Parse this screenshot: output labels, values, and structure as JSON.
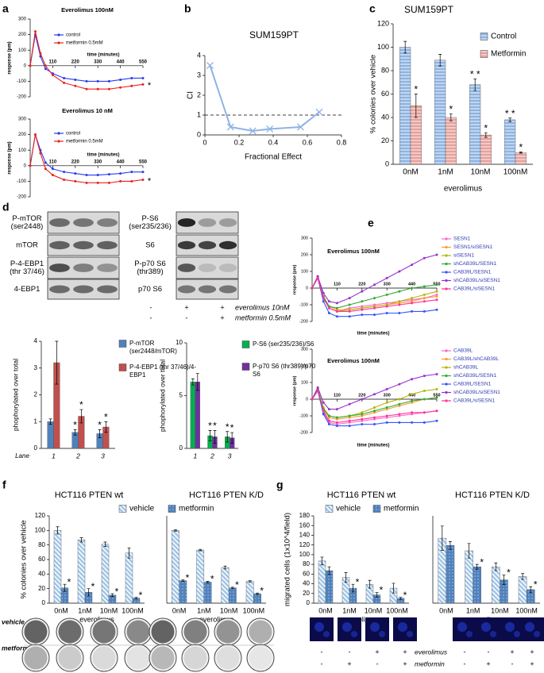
{
  "figure": {
    "panel_labels": [
      "a",
      "b",
      "c",
      "d",
      "e",
      "f",
      "g"
    ],
    "blots": [
      {
        "labels": [
          [
            "P-mTOR",
            "(ser2448)"
          ],
          [
            "mTOR"
          ],
          [
            "P-4-EBP1",
            "(thr 37/46)"
          ],
          [
            "4-EBP1"
          ]
        ]
      },
      {
        "labels": [
          [
            "P-S6",
            "(ser235/236)"
          ],
          [
            "S6"
          ],
          [
            "P-p70 S6",
            "(thr389)"
          ],
          [
            "p70 S6"
          ]
        ]
      }
    ],
    "treatments": [
      {
        "label": "everolimus 10nM",
        "signs": [
          "-",
          "+",
          "+"
        ]
      },
      {
        "label": "metformin 0.5mM",
        "signs": [
          "-",
          "-",
          "+"
        ]
      }
    ],
    "plate_rows": [
      "vehicle",
      "metformin"
    ],
    "migration_treatments": [
      {
        "label": "everolimus",
        "signs": [
          "-",
          "-",
          "+",
          "+",
          "-",
          "-",
          "+",
          "+"
        ]
      },
      {
        "label": "metformin",
        "signs": [
          "-",
          "+",
          "-",
          "+",
          "-",
          "+",
          "-",
          "+"
        ]
      }
    ]
  },
  "chart_data": [
    {
      "type": "line",
      "title": "Everolimus 100nM",
      "x_label": "time (minutes)",
      "y_label": "response (pm)",
      "x": [
        0,
        25,
        50,
        75,
        110,
        165,
        220,
        275,
        330,
        385,
        440,
        495,
        550
      ],
      "xlim": [
        0,
        550
      ],
      "xticks": [
        110,
        220,
        330,
        440,
        550
      ],
      "ylim": [
        -200,
        300
      ],
      "yticks": [
        -200,
        -100,
        0,
        100,
        200,
        300
      ],
      "x_axis_at_zero": true,
      "marker": "circle",
      "annotation": "*",
      "series": [
        {
          "name": "control",
          "color": "#2a3cf0",
          "values": [
            0,
            200,
            60,
            -20,
            -50,
            -80,
            -90,
            -100,
            -100,
            -100,
            -90,
            -80,
            -80
          ]
        },
        {
          "name": "metformin 0.5mM",
          "color": "#e8231e",
          "values": [
            0,
            220,
            80,
            0,
            -60,
            -110,
            -130,
            -150,
            -150,
            -150,
            -140,
            -130,
            -120
          ]
        }
      ]
    },
    {
      "type": "line",
      "title": "Everolimus 10 nM",
      "x_label": "time (minutes)",
      "y_label": "response (pm)",
      "x": [
        0,
        25,
        50,
        75,
        110,
        165,
        220,
        275,
        330,
        385,
        440,
        495,
        550
      ],
      "xlim": [
        0,
        550
      ],
      "xticks": [
        110,
        220,
        330,
        440,
        550
      ],
      "ylim": [
        -200,
        300
      ],
      "yticks": [
        -200,
        -100,
        0,
        100,
        200,
        300
      ],
      "x_axis_at_zero": true,
      "marker": "circle",
      "annotation": "*",
      "series": [
        {
          "name": "control",
          "color": "#2a3cf0",
          "values": [
            0,
            200,
            100,
            20,
            -20,
            -40,
            -50,
            -60,
            -60,
            -55,
            -50,
            -40,
            -40
          ]
        },
        {
          "name": "metformin 0.5mM",
          "color": "#e8231e",
          "values": [
            0,
            200,
            80,
            -20,
            -60,
            -90,
            -100,
            -110,
            -110,
            -110,
            -100,
            -100,
            -90
          ]
        }
      ]
    },
    {
      "type": "line",
      "title": "SUM159PT",
      "x_label": "Fractional Effect",
      "y_label": "CI",
      "x": [
        0.03,
        0.15,
        0.28,
        0.38,
        0.56,
        0.67
      ],
      "xlim": [
        0,
        0.8
      ],
      "xticks": [
        0,
        0.2,
        0.4,
        0.6,
        0.8
      ],
      "ylim": [
        0,
        4
      ],
      "yticks": [
        0,
        1,
        2,
        3,
        4
      ],
      "hline": 1,
      "marker": "x",
      "series": [
        {
          "color": "#8eb4e3",
          "values": [
            3.5,
            0.4,
            0.2,
            0.3,
            0.4,
            1.15
          ]
        }
      ]
    },
    {
      "type": "bar",
      "title": "SUM159PT",
      "x_label": "everolimus",
      "y_label": "% colonies over vehicle",
      "categories": [
        "0nM",
        "1nM",
        "10nM",
        "100nM"
      ],
      "ylim": [
        0,
        120
      ],
      "yticks": [
        0,
        20,
        40,
        60,
        80,
        100,
        120
      ],
      "series": [
        {
          "name": "Control",
          "color": "#8db3e2",
          "pattern": "horizontal",
          "values": [
            100,
            89,
            68,
            38
          ],
          "errors": [
            5,
            5,
            5,
            1.5
          ],
          "significance": [
            null,
            null,
            "* *",
            "* *"
          ]
        },
        {
          "name": "Metformin",
          "color": "#e6a09a",
          "pattern": "horizontal",
          "values": [
            50,
            40,
            25,
            10
          ],
          "errors": [
            10,
            3,
            2,
            0.5
          ],
          "significance": [
            "*",
            "*",
            "*",
            "*"
          ]
        }
      ]
    },
    {
      "type": "bar",
      "x_label": "Lane",
      "y_label": "phophorylated over total",
      "categories": [
        "1",
        "2",
        "3"
      ],
      "ylim": [
        0,
        4
      ],
      "yticks": [
        0,
        1,
        2,
        3,
        4
      ],
      "series": [
        {
          "name": "P-mTOR (ser2448/mTOR)",
          "color": "#4f81bd",
          "values": [
            1,
            0.6,
            0.55
          ],
          "errors": [
            0.1,
            0.1,
            0.15
          ],
          "significance": [
            null,
            "*",
            "*"
          ]
        },
        {
          "name": "P-4-EBP1 (thr 37/46)/4-EBP1",
          "color": "#c0504d",
          "values": [
            3.2,
            1.2,
            0.8
          ],
          "errors": [
            0.8,
            0.25,
            0.2
          ],
          "significance": [
            null,
            "*",
            "*"
          ]
        }
      ]
    },
    {
      "type": "bar",
      "y_label": "phophorylated over total",
      "categories": [
        "1",
        "2",
        "3"
      ],
      "ylim": [
        0,
        10
      ],
      "yticks": [
        0,
        5,
        10
      ],
      "series": [
        {
          "name": "P-S6 (ser235/236)/S6",
          "color": "#00b050",
          "values": [
            6.3,
            1.2,
            1.1
          ],
          "errors": [
            0.3,
            0.5,
            0.5
          ],
          "significance": [
            null,
            "*",
            "*"
          ]
        },
        {
          "name": "P-p70 S6 (thr389)/p70 S6",
          "color": "#7030a0",
          "values": [
            6.3,
            1.1,
            1.0
          ],
          "errors": [
            0.8,
            0.6,
            0.5
          ],
          "significance": [
            null,
            "*",
            "*"
          ]
        }
      ]
    },
    {
      "type": "line",
      "title": "Everolimus 100nM",
      "x_label": "time (minutes)",
      "y_label": "response (pm)",
      "x": [
        0,
        25,
        50,
        75,
        110,
        165,
        220,
        275,
        330,
        385,
        440,
        495,
        550
      ],
      "xlim": [
        0,
        550
      ],
      "xticks": [
        110,
        220,
        330,
        440,
        550
      ],
      "ylim": [
        -200,
        300
      ],
      "yticks": [
        -200,
        -100,
        0,
        100,
        200,
        300
      ],
      "x_axis_at_zero": true,
      "marker": "circle",
      "legend_text_color": "#2e3bb0",
      "series": [
        {
          "name": "SESN1",
          "color": "#ff66cc",
          "values": [
            0,
            60,
            -60,
            -120,
            -140,
            -120,
            -110,
            -100,
            -90,
            -80,
            -70,
            -60,
            -40
          ]
        },
        {
          "name": "SESN1/siSESN1",
          "color": "#ff9933",
          "values": [
            0,
            70,
            -50,
            -110,
            -130,
            -130,
            -120,
            -110,
            -100,
            -90,
            -80,
            -60,
            -50
          ]
        },
        {
          "name": "siSESN1",
          "color": "#b5b500",
          "values": [
            0,
            60,
            -60,
            -120,
            -140,
            -130,
            -120,
            -110,
            -100,
            -80,
            -60,
            -40,
            -20
          ]
        },
        {
          "name": "shCAB39L/SESN1",
          "color": "#33aa33",
          "values": [
            0,
            70,
            -50,
            -110,
            -120,
            -100,
            -80,
            -60,
            -40,
            -20,
            0,
            10,
            20
          ]
        },
        {
          "name": "CAB39L/SESN1",
          "color": "#3355ff",
          "values": [
            0,
            60,
            -80,
            -150,
            -170,
            -170,
            -160,
            -160,
            -150,
            -150,
            -140,
            -140,
            -130
          ]
        },
        {
          "name": "shCAB39L/siSESN1",
          "color": "#9933cc",
          "values": [
            0,
            70,
            -30,
            -80,
            -90,
            -60,
            -20,
            20,
            60,
            100,
            140,
            180,
            200
          ]
        },
        {
          "name": "CAB39L/siSESN1",
          "color": "#ff3399",
          "values": [
            0,
            60,
            -60,
            -120,
            -140,
            -140,
            -130,
            -120,
            -110,
            -100,
            -90,
            -80,
            -70
          ]
        }
      ]
    },
    {
      "type": "line",
      "title": "Everolimus 100nM",
      "x_label": "time (minutes)",
      "y_label": "response (pm)",
      "x": [
        0,
        25,
        50,
        75,
        110,
        165,
        220,
        275,
        330,
        385,
        440,
        495,
        550
      ],
      "xlim": [
        0,
        550
      ],
      "xticks": [
        110,
        220,
        330,
        440,
        550
      ],
      "ylim": [
        -200,
        300
      ],
      "yticks": [
        -200,
        -100,
        0,
        100,
        200,
        300
      ],
      "x_axis_at_zero": true,
      "marker": "circle",
      "legend_text_color": "#2e3bb0",
      "series": [
        {
          "name": "CAB39L",
          "color": "#ff66cc",
          "values": [
            0,
            50,
            -80,
            -140,
            -150,
            -140,
            -130,
            -120,
            -110,
            -100,
            -90,
            -80,
            -70
          ]
        },
        {
          "name": "CAB39L/shCAB39L",
          "color": "#ff9933",
          "values": [
            0,
            60,
            -60,
            -110,
            -120,
            -110,
            -100,
            -80,
            -60,
            -40,
            -20,
            0,
            10
          ]
        },
        {
          "name": "shCAB39L",
          "color": "#b5b500",
          "values": [
            0,
            60,
            -50,
            -100,
            -110,
            -100,
            -80,
            -50,
            -20,
            0,
            30,
            50,
            60
          ]
        },
        {
          "name": "shCAB39L/SESN1",
          "color": "#33aa33",
          "values": [
            0,
            60,
            -60,
            -100,
            -110,
            -100,
            -90,
            -70,
            -50,
            -30,
            -10,
            0,
            10
          ]
        },
        {
          "name": "CAB39L/SESN1",
          "color": "#3355ff",
          "values": [
            0,
            50,
            -90,
            -150,
            -160,
            -160,
            -150,
            -150,
            -140,
            -140,
            -140,
            -140,
            -130
          ]
        },
        {
          "name": "shCAB39L/siSESN1",
          "color": "#9933cc",
          "values": [
            0,
            70,
            -20,
            -60,
            -60,
            -30,
            0,
            30,
            60,
            90,
            120,
            140,
            150
          ]
        },
        {
          "name": "CAB39L/siSESN1",
          "color": "#ff3399",
          "values": [
            0,
            50,
            -70,
            -130,
            -140,
            -130,
            -120,
            -110,
            -100,
            -90,
            -80,
            -80,
            -70
          ]
        }
      ]
    },
    {
      "type": "bar",
      "title": "HCT116 PTEN wt",
      "x_label": "everolimus",
      "y_label": "% colonies over vehicle",
      "categories": [
        "0nM",
        "1nM",
        "10nM",
        "100nM"
      ],
      "ylim": [
        0,
        120
      ],
      "yticks": [
        0,
        20,
        40,
        60,
        80,
        100,
        120
      ],
      "series": [
        {
          "name": "vehicle",
          "color": "#9dc3e6",
          "pattern": "diagonal",
          "values": [
            100,
            87,
            81,
            69
          ],
          "errors": [
            5,
            3,
            3,
            7
          ]
        },
        {
          "name": "metformin",
          "color": "#4f81bd",
          "pattern": "dots",
          "values": [
            21,
            15,
            11,
            7
          ],
          "errors": [
            5,
            5,
            2,
            1
          ],
          "significance": [
            "*",
            "*",
            "*",
            "*"
          ]
        }
      ]
    },
    {
      "type": "bar",
      "title": "HCT116 PTEN K/D",
      "x_label": "everolimus",
      "categories": [
        "0nM",
        "1nM",
        "10nM",
        "100nM"
      ],
      "ylim": [
        0,
        120
      ],
      "series": [
        {
          "color": "#9dc3e6",
          "pattern": "diagonal",
          "values": [
            100,
            73,
            49,
            30
          ],
          "errors": [
            1,
            1,
            2,
            1
          ]
        },
        {
          "color": "#4f81bd",
          "pattern": "dots",
          "values": [
            31,
            29,
            21,
            13
          ],
          "errors": [
            1,
            1,
            1,
            1
          ],
          "significance": [
            "*",
            "*",
            "*",
            "*"
          ]
        }
      ]
    },
    {
      "type": "bar",
      "title": "HCT116 PTEN wt",
      "x_label": "everolimus",
      "y_label": "migrated cells (1x10^4/field)",
      "categories": [
        "0nM",
        "1nM",
        "10nM",
        "100nM"
      ],
      "ylim": [
        0,
        180
      ],
      "yticks": [
        0,
        20,
        40,
        60,
        80,
        100,
        120,
        140,
        160,
        180
      ],
      "series": [
        {
          "name": "vehicle",
          "color": "#9dc3e6",
          "pattern": "diagonal",
          "values": [
            87,
            53,
            39,
            31
          ],
          "errors": [
            8,
            10,
            8,
            10
          ]
        },
        {
          "name": "metformin",
          "color": "#4f81bd",
          "pattern": "dots",
          "values": [
            67,
            31,
            17,
            10
          ],
          "errors": [
            8,
            8,
            5,
            2
          ],
          "significance": [
            null,
            "*",
            "*",
            "*"
          ]
        }
      ]
    },
    {
      "type": "bar",
      "title": "HCT116 PTEN K/D",
      "x_label": "everolimus",
      "categories": [
        "0nM",
        "1nM",
        "10nM",
        "100nM"
      ],
      "ylim": [
        0,
        180
      ],
      "series": [
        {
          "color": "#9dc3e6",
          "pattern": "diagonal",
          "values": [
            134,
            108,
            75,
            55
          ],
          "errors": [
            25,
            15,
            8,
            6
          ]
        },
        {
          "color": "#4f81bd",
          "pattern": "dots",
          "values": [
            119,
            75,
            48,
            28
          ],
          "errors": [
            8,
            5,
            10,
            6
          ],
          "significance": [
            null,
            "*",
            "*",
            "*"
          ]
        }
      ]
    }
  ]
}
